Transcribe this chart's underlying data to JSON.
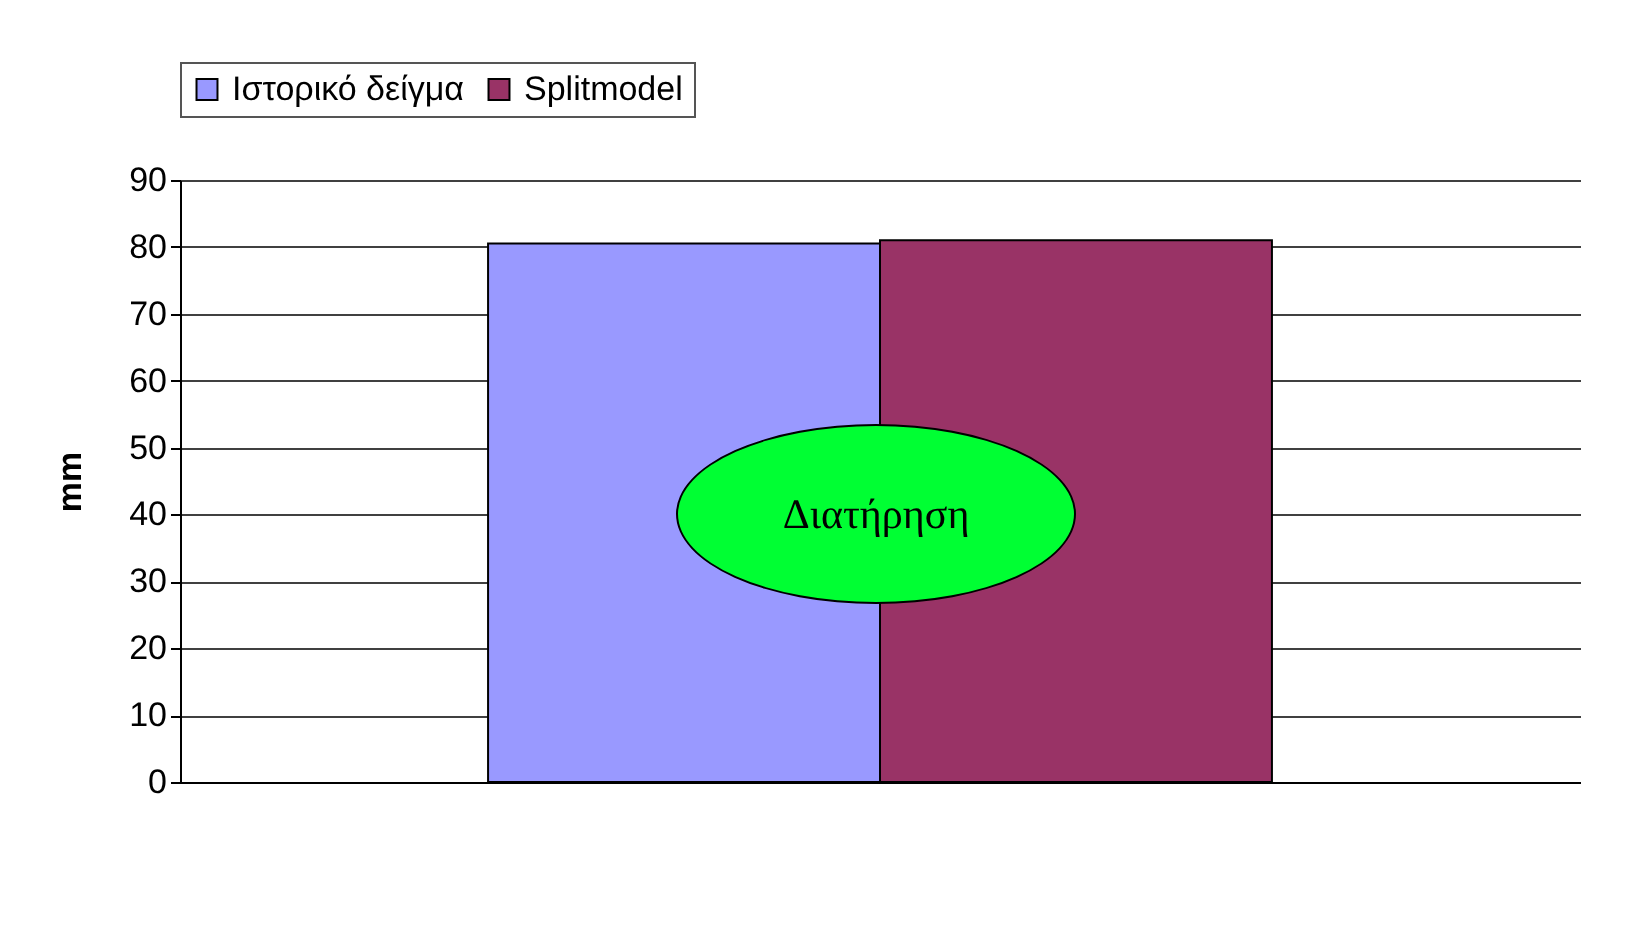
{
  "chart_data": {
    "type": "bar",
    "ylabel": "mm",
    "categories": [
      null
    ],
    "series": [
      {
        "name": "Ιστορικό δείγμα",
        "color": "#9999ff",
        "values": [
          80.5
        ]
      },
      {
        "name": "Splitmodel",
        "color": "#993366",
        "values": [
          81
        ]
      }
    ],
    "ylim": [
      0,
      90
    ],
    "yticks": [
      0,
      10,
      20,
      30,
      40,
      50,
      60,
      70,
      80,
      90
    ],
    "grid": "y",
    "legend": "top",
    "annotations": [
      "Διατήρηση"
    ]
  }
}
